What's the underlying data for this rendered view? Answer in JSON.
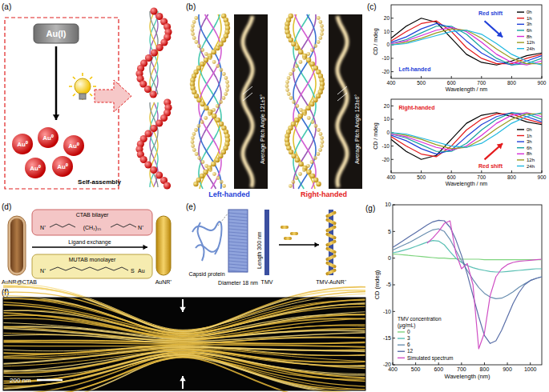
{
  "panels": {
    "a": {
      "label": "(a)",
      "source": "Au(I)",
      "product": "Au⁰",
      "process": "Self-assembly"
    },
    "b": {
      "label": "(b)",
      "left": {
        "caption": "Left-handed",
        "pitch": "Average Pitch Angle 121±5°"
      },
      "right": {
        "caption": "Right-handed",
        "pitch": "Average Pitch Angle 123±6°"
      }
    },
    "c": {
      "label": "(c)"
    },
    "d": {
      "label": "(d)",
      "rod_start": "AuNR@CTAB",
      "bilayer": "CTAB bilayer",
      "step": "Ligand exchange",
      "monolayer": "MUTAB monolayer",
      "rod_end": "AuNR⁺",
      "head": "N⁺",
      "chain": "(CH₂)₁₅",
      "thiol": "S",
      "metal": "Au"
    },
    "e": {
      "label": "(e)",
      "protein": "Capsid protein",
      "diameter": "Diameter 18 nm",
      "length": "Length 300 nm",
      "virus": "TMV",
      "complex": "TMV-AuNR⁺"
    },
    "f": {
      "label": "(f)",
      "scale_bar": "200 nm"
    },
    "g": {
      "label": "(g)"
    }
  },
  "chart_data": [
    {
      "type": "line",
      "xlabel": "Wavelength / nm",
      "ylabel": "CD / mdeg",
      "x": [
        400,
        450,
        500,
        550,
        600,
        650,
        700,
        750,
        800,
        850,
        900
      ],
      "xlim": [
        400,
        900
      ],
      "xticks": [
        400,
        500,
        600,
        700,
        800,
        900
      ],
      "ylim": [
        -25,
        30
      ],
      "yticks": [
        -20,
        -10,
        0,
        10,
        20
      ],
      "legend": "upper right",
      "annotations": [
        {
          "text": "Red shift",
          "color": "#1f3fd8"
        },
        {
          "text": "Left-handed",
          "color": "#1f3fd8"
        }
      ],
      "series": [
        {
          "name": "0h",
          "color": "#000000",
          "values": [
            5,
            14,
            20,
            17,
            5,
            -7,
            -13,
            -15,
            -12,
            -8,
            -6
          ]
        },
        {
          "name": "1h",
          "color": "#e41a1c",
          "values": [
            3,
            10,
            16,
            18,
            10,
            -2,
            -10,
            -14,
            -14,
            -10,
            -7
          ]
        },
        {
          "name": "3h",
          "color": "#1f3fd8",
          "values": [
            2,
            6,
            12,
            16,
            13,
            3,
            -6,
            -12,
            -15,
            -12,
            -8
          ]
        },
        {
          "name": "6h",
          "color": "#17a2a2",
          "values": [
            1,
            4,
            9,
            14,
            14,
            8,
            -2,
            -10,
            -15,
            -14,
            -10
          ]
        },
        {
          "name": "8h",
          "color": "#d62ad6",
          "values": [
            1,
            3,
            7,
            11,
            13,
            10,
            2,
            -7,
            -13,
            -15,
            -12
          ]
        },
        {
          "name": "12h",
          "color": "#9a9a20",
          "values": [
            0,
            2,
            5,
            9,
            12,
            11,
            5,
            -3,
            -10,
            -14,
            -14
          ]
        },
        {
          "name": "24h",
          "color": "#20b8e0",
          "values": [
            0,
            1,
            4,
            7,
            10,
            11,
            8,
            1,
            -7,
            -12,
            -15
          ]
        }
      ]
    },
    {
      "type": "line",
      "xlabel": "Wavelength / nm",
      "ylabel": "CD / mdeg",
      "x": [
        400,
        450,
        500,
        550,
        600,
        650,
        700,
        750,
        800,
        850,
        900
      ],
      "xlim": [
        400,
        900
      ],
      "xticks": [
        400,
        500,
        600,
        700,
        800,
        900
      ],
      "ylim": [
        -30,
        25
      ],
      "yticks": [
        -20,
        -10,
        0,
        10,
        20
      ],
      "legend": "lower right",
      "annotations": [
        {
          "text": "Red shift",
          "color": "#e41a1c"
        },
        {
          "text": "Right-handed",
          "color": "#e41a1c"
        }
      ],
      "series": [
        {
          "name": "0h",
          "color": "#000000",
          "values": [
            -5,
            -14,
            -20,
            -17,
            -5,
            7,
            13,
            15,
            12,
            8,
            6
          ]
        },
        {
          "name": "1h",
          "color": "#e41a1c",
          "values": [
            -3,
            -10,
            -16,
            -18,
            -10,
            2,
            10,
            14,
            14,
            10,
            7
          ]
        },
        {
          "name": "3h",
          "color": "#1f3fd8",
          "values": [
            -2,
            -6,
            -12,
            -16,
            -13,
            -3,
            6,
            12,
            15,
            12,
            8
          ]
        },
        {
          "name": "6h",
          "color": "#17a2a2",
          "values": [
            -1,
            -4,
            -9,
            -14,
            -14,
            -8,
            2,
            10,
            15,
            14,
            10
          ]
        },
        {
          "name": "8h",
          "color": "#d62ad6",
          "values": [
            -1,
            -3,
            -7,
            -11,
            -13,
            -10,
            -2,
            7,
            13,
            15,
            12
          ]
        },
        {
          "name": "12h",
          "color": "#9a9a20",
          "values": [
            0,
            -2,
            -5,
            -9,
            -12,
            -11,
            -5,
            3,
            10,
            14,
            14
          ]
        },
        {
          "name": "24h",
          "color": "#20b8e0",
          "values": [
            0,
            -1,
            -4,
            -7,
            -10,
            -11,
            -8,
            -1,
            7,
            12,
            15
          ]
        }
      ]
    },
    {
      "type": "line",
      "xlabel": "Wavelength (nm)",
      "ylabel": "CD (mdeg)",
      "x": [
        400,
        425,
        450,
        475,
        500,
        525,
        550,
        575,
        600,
        625,
        650,
        675,
        700,
        725,
        750,
        775,
        800,
        825,
        850,
        875,
        900,
        925,
        950,
        975,
        1000,
        1025,
        1050
      ],
      "xlim": [
        400,
        1050
      ],
      "xticks": [
        400,
        500,
        600,
        700,
        800,
        900,
        1000
      ],
      "ylim": [
        -20,
        10
      ],
      "yticks": [
        -20,
        -15,
        -10,
        -5,
        0,
        5,
        10
      ],
      "legend": "lower left",
      "legend_title": [
        "TMV concentration",
        "(μg/mL)"
      ],
      "series": [
        {
          "name": "0",
          "color": "#7ed47e",
          "values": [
            0.8,
            0.7,
            0.6,
            0.5,
            0.4,
            0.3,
            0.2,
            0.1,
            0,
            0,
            -0.1,
            -0.1,
            -0.2,
            -0.2,
            -0.2,
            -0.2,
            -0.3,
            -0.3,
            -0.3,
            -0.3,
            -0.3,
            -0.3,
            -0.3,
            -0.3,
            -0.3,
            -0.3,
            -0.3
          ]
        },
        {
          "name": "3",
          "color": "#5bc0b4",
          "values": [
            1,
            1.2,
            1.5,
            1.8,
            2.2,
            2.6,
            3,
            3.3,
            3.2,
            2.5,
            1.2,
            0,
            -0.8,
            -1.4,
            -1.8,
            -2.1,
            -2.3,
            -2.5,
            -2.6,
            -2.6,
            -2.5,
            -2.4,
            -2.3,
            -2.2,
            -2.1,
            -2,
            -2
          ]
        },
        {
          "name": "6",
          "color": "#6a8fb0",
          "values": [
            1.5,
            2,
            2.5,
            3,
            3.6,
            4.2,
            4.8,
            5.3,
            5.5,
            5,
            3.5,
            1.5,
            -0.5,
            -2.3,
            -4,
            -5.5,
            -6.6,
            -7.3,
            -7.6,
            -7.5,
            -7,
            -6.3,
            -5.5,
            -4.8,
            -4.2,
            -3.8,
            -3.5
          ]
        },
        {
          "name": "12",
          "color": "#5a6fa8",
          "values": [
            2,
            2.7,
            3.4,
            4.1,
            4.8,
            5.5,
            6.2,
            6.8,
            7.1,
            7,
            5.8,
            3.5,
            0.5,
            -3,
            -7,
            -11,
            -14.5,
            -16,
            -15.5,
            -13.5,
            -11,
            -8.5,
            -6.5,
            -5,
            -4.2,
            -3.8,
            -3.5
          ]
        },
        {
          "name": "Simulated spectrum",
          "color": "#d04fc4",
          "values": [
            null,
            null,
            null,
            null,
            null,
            null,
            2.8,
            3.8,
            5,
            6.5,
            7,
            1,
            -2,
            -1,
            -5,
            -17,
            -14,
            -7,
            -3.5,
            -2,
            -1.2,
            -0.8,
            -0.6,
            -0.5,
            -0.4,
            -0.3,
            -0.2
          ]
        }
      ]
    }
  ]
}
